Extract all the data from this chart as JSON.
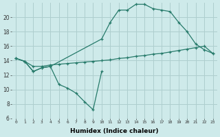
{
  "xlabel": "Humidex (Indice chaleur)",
  "background_color": "#ceeaea",
  "grid_color": "#aecece",
  "line_color": "#267a6a",
  "xlim": [
    -0.5,
    23.5
  ],
  "ylim": [
    6,
    22
  ],
  "xticks": [
    0,
    1,
    2,
    3,
    4,
    5,
    6,
    7,
    8,
    9,
    10,
    11,
    12,
    13,
    14,
    15,
    16,
    17,
    18,
    19,
    20,
    21,
    22,
    23
  ],
  "yticks": [
    6,
    8,
    10,
    12,
    14,
    16,
    18,
    20
  ],
  "line1_x": [
    0,
    1,
    2,
    3,
    4,
    5,
    6,
    7,
    8,
    9,
    10
  ],
  "line1_y": [
    14.3,
    13.9,
    12.5,
    13.0,
    13.2,
    10.7,
    10.2,
    9.5,
    8.3,
    7.2,
    12.5
  ],
  "line2_x": [
    0,
    1,
    2,
    3,
    4,
    5,
    6,
    7,
    8,
    9,
    10,
    11,
    12,
    13,
    14,
    15,
    16,
    17,
    18,
    19,
    20,
    21,
    22,
    23
  ],
  "line2_y": [
    14.3,
    13.9,
    13.2,
    13.2,
    13.4,
    13.5,
    13.6,
    13.7,
    13.8,
    13.9,
    14.0,
    14.1,
    14.3,
    14.4,
    14.6,
    14.7,
    14.9,
    15.0,
    15.2,
    15.4,
    15.6,
    15.8,
    16.0,
    15.0
  ],
  "line3_x": [
    0,
    1,
    2,
    3,
    4,
    10,
    11,
    12,
    13,
    14,
    15,
    16,
    17,
    18,
    19,
    20,
    21,
    22,
    23
  ],
  "line3_y": [
    14.3,
    13.9,
    12.5,
    13.0,
    13.2,
    17.0,
    19.3,
    21.0,
    21.0,
    21.8,
    21.8,
    21.2,
    21.0,
    20.8,
    19.3,
    18.0,
    16.3,
    15.5,
    15.0
  ]
}
